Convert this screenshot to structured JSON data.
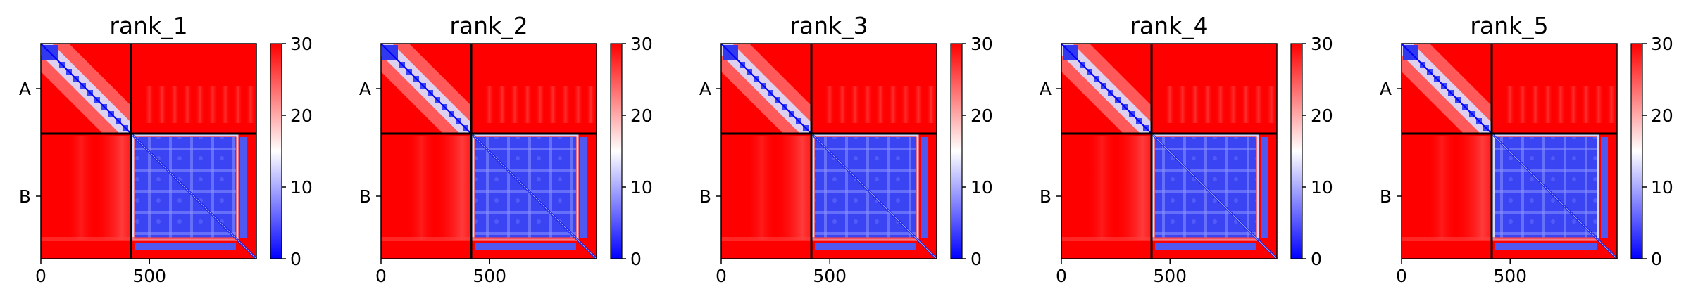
{
  "chart_data": {
    "type": "heatmap",
    "colormap": [
      "#0000ff",
      "#ffffff",
      "#ff0000"
    ],
    "colorbar": {
      "min": 0,
      "max": 30,
      "ticks": [
        0,
        10,
        20,
        30
      ]
    },
    "matrix_size": 992,
    "chain_boundary": 415,
    "x_ticks": [
      0,
      500
    ],
    "chains": [
      {
        "label": "A",
        "start": 0,
        "end": 415
      },
      {
        "label": "B",
        "start": 415,
        "end": 992
      }
    ],
    "panels": [
      {
        "title": "rank_1"
      },
      {
        "title": "rank_2"
      },
      {
        "title": "rank_3"
      },
      {
        "title": "rank_4"
      },
      {
        "title": "rank_5"
      }
    ]
  }
}
